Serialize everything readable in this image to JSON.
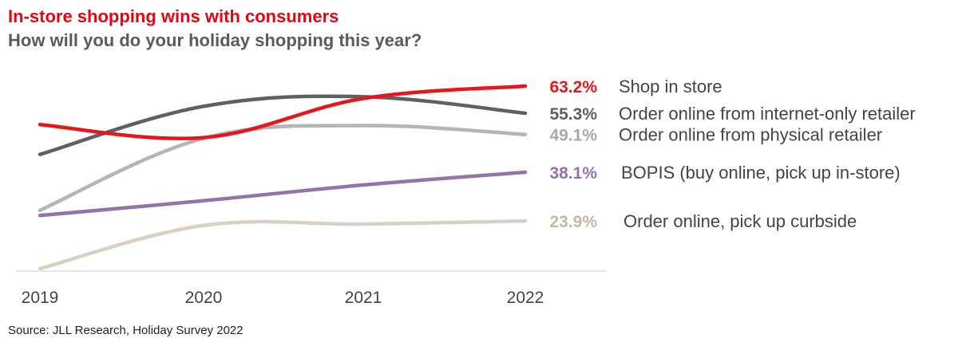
{
  "chart_data": {
    "type": "line",
    "title": "In-store shopping wins with consumers",
    "subtitle": "How will you do your holiday shopping this year?",
    "source": "Source: JLL Research, Holiday Survey 2022",
    "x": [
      "2019",
      "2020",
      "2021",
      "2022"
    ],
    "ylim": [
      10,
      70
    ],
    "grid": false,
    "legend": "end-of-line labels, right",
    "series": [
      {
        "name": "Shop in store",
        "values": [
          52.0,
          48.2,
          59.6,
          63.2
        ],
        "value_label": "63.2%",
        "color": "#e8151c"
      },
      {
        "name": "Order online from internet-only retailer",
        "values": [
          43.3,
          57.3,
          60.1,
          55.3
        ],
        "value_label": "55.3%",
        "color": "#5f5f66"
      },
      {
        "name": "Order online from physical retailer",
        "values": [
          27.0,
          48.0,
          51.7,
          49.1
        ],
        "value_label": "49.1%",
        "color": "#b5b5b5"
      },
      {
        "name": "BOPIS (buy online, pick up in-store)",
        "values": [
          25.5,
          29.8,
          34.4,
          38.1
        ],
        "value_label": "38.1%",
        "color": "#9473a8"
      },
      {
        "name": "Order online, pick up curbside",
        "values": [
          10.0,
          22.6,
          23.0,
          23.9
        ],
        "value_label": "23.9%",
        "color": "#d8d1c3"
      }
    ]
  }
}
